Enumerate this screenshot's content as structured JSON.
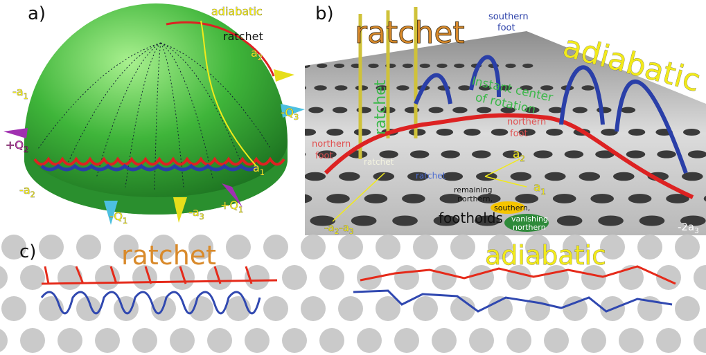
{
  "panel_a": {
    "label": "a)",
    "labels": [
      [
        "adiabatic"
      ],
      [
        "ratchet"
      ],
      [
        "a",
        "2"
      ],
      [
        "-a",
        "1"
      ],
      [
        "+Q",
        "2"
      ],
      [
        "-Q",
        "3"
      ],
      [
        "a",
        "1"
      ],
      [
        "-a",
        "2"
      ],
      [
        "-Q",
        "1"
      ],
      [
        "-a",
        "3"
      ],
      [
        "+Q",
        "1"
      ]
    ]
  },
  "panel_b": {
    "label": "b)",
    "title_ratchet": "ratchet",
    "title_adiabatic": "adiabatic",
    "southern_foot": [
      "southern",
      "foot"
    ],
    "ratchet_vertical": "ratchet",
    "instant_center": [
      "Instant center",
      "of rotation"
    ],
    "northern_foot_right": [
      "northern",
      "foot"
    ],
    "northern_foot_left": [
      "northern",
      "foot"
    ],
    "ratchet_light": "ratchet",
    "ratchet_blue": "ratchet",
    "axis_a2": [
      "a",
      "2"
    ],
    "axis_a1": [
      "a",
      "1"
    ],
    "remaining_northern": [
      "remaining",
      "northern,"
    ],
    "southern": "southern,",
    "vanishing_northern": [
      "vanishing",
      "northern"
    ],
    "footholds": "footholds",
    "axis_neg_a2_a3": [
      "-a",
      "2",
      "-a",
      "3"
    ],
    "axis_neg_2a3": [
      "-2a",
      "3"
    ]
  },
  "panel_c": {
    "label": "c)",
    "ratchet": "ratchet",
    "adiabatic": "adiabatic"
  }
}
